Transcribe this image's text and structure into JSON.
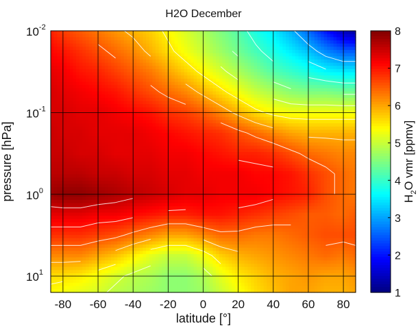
{
  "chart_data": {
    "type": "heatmap",
    "title": "H2O December",
    "xlabel": "latitude [°]",
    "ylabel": "pressure [hPa]",
    "colorbar_label": {
      "main": "H",
      "sub": "2",
      "rest": "O vmr [ppmv]"
    },
    "xlim": [
      -87,
      87
    ],
    "ylim_log10_pressure": [
      -2,
      1.2
    ],
    "y_scale": "log",
    "y_reversed": true,
    "grid": true,
    "x_ticks": [
      "-80",
      "-60",
      "-40",
      "-20",
      "0",
      "20",
      "40",
      "60",
      "80"
    ],
    "x_tick_values": [
      -80,
      -60,
      -40,
      -20,
      0,
      20,
      40,
      60,
      80
    ],
    "y_ticks": [
      {
        "base": "10",
        "exp": "-2",
        "value": 0.01
      },
      {
        "base": "10",
        "exp": "-1",
        "value": 0.1
      },
      {
        "base": "10",
        "exp": "0",
        "value": 1
      },
      {
        "base": "10",
        "exp": "1",
        "value": 10
      }
    ],
    "colorbar_ticks": [
      "1",
      "2",
      "3",
      "4",
      "5",
      "6",
      "7",
      "8"
    ],
    "colorbar_range": [
      1,
      8
    ],
    "colormap": "jet",
    "latitudes": [
      -87,
      -80,
      -70,
      -60,
      -50,
      -40,
      -30,
      -20,
      -10,
      0,
      10,
      20,
      30,
      40,
      50,
      60,
      70,
      80,
      87
    ],
    "log10_pressure_levels": [
      -2.0,
      -1.75,
      -1.5,
      -1.25,
      -1.0,
      -0.75,
      -0.5,
      -0.25,
      0.0,
      0.25,
      0.5,
      0.75,
      1.0,
      1.2
    ],
    "h2o_vmr_ppmv": [
      [
        6.9,
        6.7,
        6.5,
        6.3,
        6.1,
        5.9,
        5.7,
        5.4,
        5.1,
        4.8,
        4.5,
        4.2,
        3.8,
        3.5,
        3.1,
        2.6,
        2.0,
        1.4,
        1.2
      ],
      [
        7.1,
        7.0,
        6.8,
        6.6,
        6.4,
        6.2,
        5.9,
        5.6,
        5.3,
        5.0,
        4.7,
        4.4,
        4.1,
        3.8,
        3.5,
        3.2,
        2.8,
        2.5,
        2.5
      ],
      [
        7.3,
        7.2,
        7.0,
        6.9,
        6.7,
        6.5,
        6.3,
        6.0,
        5.7,
        5.4,
        5.1,
        4.8,
        4.5,
        4.2,
        4.0,
        3.8,
        3.6,
        3.5,
        3.5
      ],
      [
        7.4,
        7.3,
        7.2,
        7.1,
        7.0,
        6.8,
        6.6,
        6.4,
        6.2,
        5.9,
        5.6,
        5.3,
        5.0,
        4.8,
        4.6,
        4.5,
        4.5,
        4.4,
        4.4
      ],
      [
        7.4,
        7.4,
        7.3,
        7.3,
        7.2,
        7.1,
        7.0,
        6.8,
        6.7,
        6.5,
        6.2,
        5.9,
        5.6,
        5.4,
        5.3,
        5.3,
        5.3,
        5.3,
        5.3
      ],
      [
        7.5,
        7.4,
        7.4,
        7.3,
        7.3,
        7.3,
        7.2,
        7.1,
        7.0,
        6.9,
        6.8,
        6.6,
        6.4,
        6.2,
        6.0,
        5.9,
        5.9,
        5.9,
        5.9
      ],
      [
        7.5,
        7.5,
        7.4,
        7.4,
        7.3,
        7.3,
        7.3,
        7.2,
        7.2,
        7.1,
        7.0,
        6.9,
        6.9,
        6.8,
        6.6,
        6.4,
        6.3,
        6.2,
        6.2
      ],
      [
        7.6,
        7.6,
        7.6,
        7.5,
        7.5,
        7.4,
        7.4,
        7.3,
        7.3,
        7.2,
        7.2,
        7.2,
        7.1,
        7.1,
        7.0,
        6.8,
        6.6,
        6.4,
        6.3
      ],
      [
        7.8,
        7.9,
        7.9,
        7.8,
        7.7,
        7.6,
        7.5,
        7.4,
        7.3,
        7.3,
        7.2,
        7.2,
        7.2,
        7.1,
        7.0,
        6.9,
        6.6,
        6.4,
        6.3
      ],
      [
        7.3,
        7.3,
        7.3,
        7.2,
        7.2,
        7.1,
        7.0,
        6.9,
        6.9,
        7.0,
        7.0,
        6.9,
        6.8,
        6.7,
        6.6,
        6.5,
        6.5,
        6.4,
        6.5
      ],
      [
        6.8,
        6.8,
        6.8,
        6.7,
        6.6,
        6.4,
        6.2,
        6.0,
        6.0,
        6.2,
        6.4,
        6.4,
        6.3,
        6.3,
        6.4,
        6.5,
        6.6,
        6.6,
        6.6
      ],
      [
        6.2,
        6.2,
        6.2,
        6.0,
        5.8,
        5.5,
        5.2,
        5.0,
        5.0,
        5.3,
        5.7,
        5.9,
        6.0,
        6.1,
        6.2,
        6.3,
        6.4,
        6.3,
        6.4
      ],
      [
        5.6,
        5.6,
        5.5,
        5.3,
        5.1,
        4.9,
        4.8,
        4.6,
        4.6,
        4.8,
        5.2,
        5.5,
        5.7,
        5.9,
        6.0,
        6.1,
        6.0,
        6.0,
        6.1
      ],
      [
        5.4,
        5.3,
        5.2,
        5.1,
        4.9,
        4.8,
        4.7,
        4.6,
        4.6,
        4.7,
        5.0,
        5.3,
        5.6,
        5.8,
        6.0,
        6.0,
        5.9,
        5.9,
        6.0
      ]
    ],
    "contour_levels": [
      3,
      3.5,
      4,
      4.5,
      5,
      5.5,
      6,
      6.5,
      7,
      7.5
    ]
  }
}
